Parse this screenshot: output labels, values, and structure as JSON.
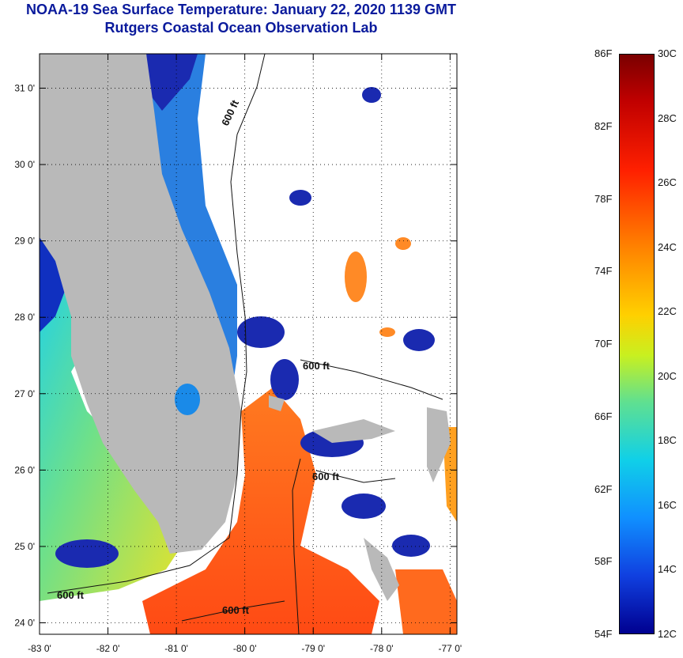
{
  "header": {
    "title": "NOAA-19 Sea Surface Temperature:  January 22, 2020 1139 GMT",
    "subtitle": "Rutgers Coastal Ocean Observation Lab"
  },
  "map": {
    "lat_labels": [
      "31 0'",
      "30 0'",
      "29 0'",
      "28 0'",
      "27 0'",
      "26 0'",
      "25 0'",
      "24 0'"
    ],
    "lon_labels": [
      "-83 0'",
      "-82 0'",
      "-81 0'",
      "-80 0'",
      "-79 0'",
      "-78 0'",
      "-77 0'"
    ],
    "lat_values": [
      31,
      30,
      29,
      28,
      27,
      26,
      25,
      24
    ],
    "lon_values": [
      -83,
      -82,
      -81,
      -80,
      -79,
      -78,
      -77
    ],
    "lat_range": [
      23.85,
      31.45
    ],
    "lon_range": [
      -83,
      -76.9
    ],
    "contour_label": "600 ft",
    "colors": {
      "land": "#b9b9b9",
      "cloud": "#ffffff",
      "warm_stream": "#ff5a1a",
      "shelf_cool": "#2a3cc8"
    }
  },
  "colorbar": {
    "fahrenheit_labels": [
      "86F",
      "82F",
      "78F",
      "74F",
      "70F",
      "66F",
      "62F",
      "58F",
      "54F"
    ],
    "celsius_labels": [
      "30C",
      "28C",
      "26C",
      "24C",
      "22C",
      "20C",
      "18C",
      "16C",
      "14C",
      "12C"
    ],
    "range_c": [
      12,
      30
    ],
    "range_f": [
      54,
      86
    ]
  }
}
